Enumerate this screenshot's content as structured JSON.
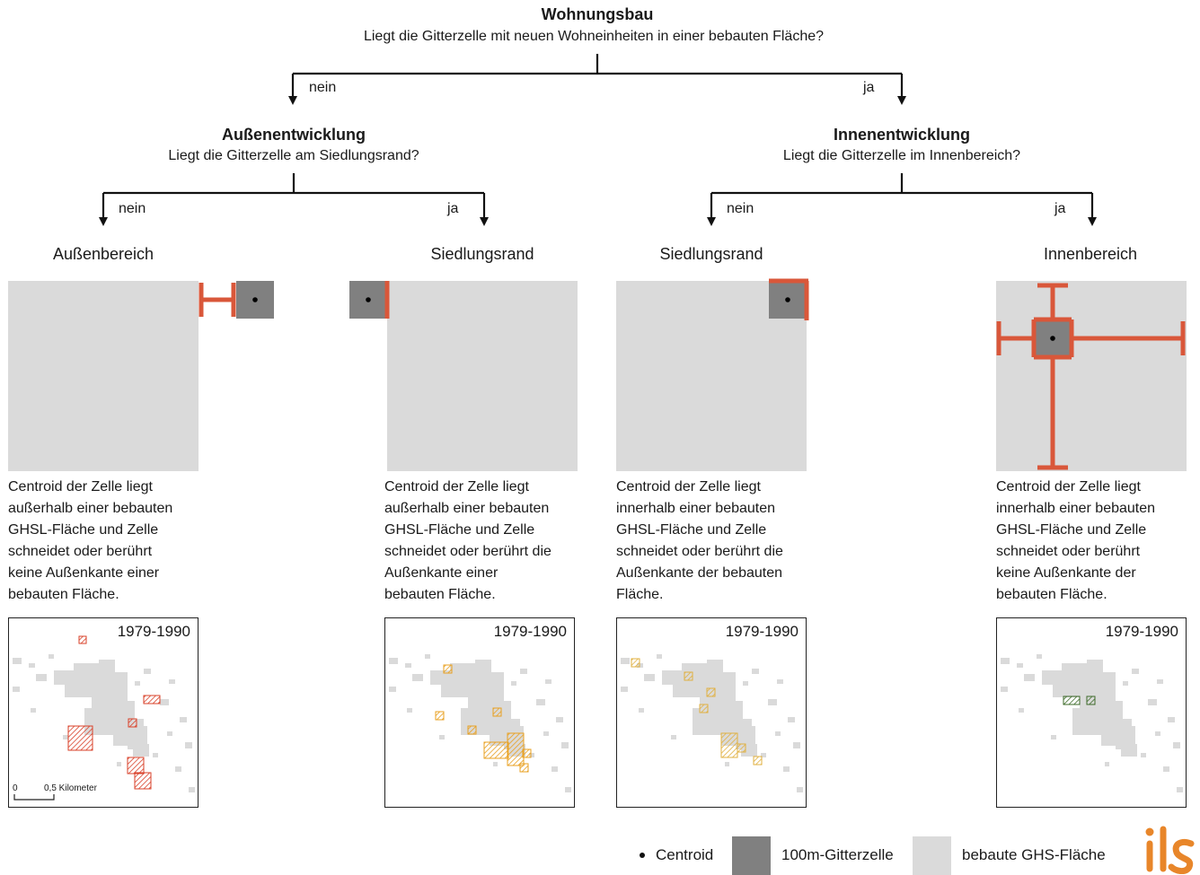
{
  "root": {
    "title": "Wohnungsbau",
    "question": "Liegt die Gitterzelle mit neuen Wohneinheiten in einer bebauten Fläche?",
    "no_label": "nein",
    "yes_label": "ja"
  },
  "left_node": {
    "title": "Außenentwicklung",
    "question": "Liegt die Gitterzelle am Siedlungsrand?",
    "no_label": "nein",
    "yes_label": "ja"
  },
  "right_node": {
    "title": "Innenentwicklung",
    "question": "Liegt die Gitterzelle im Innenbereich?",
    "no_label": "nein",
    "yes_label": "ja"
  },
  "categories": [
    {
      "label": "Außenbereich",
      "desc": [
        "Centroid der Zelle liegt",
        "außerhalb einer bebauten",
        "GHSL-Fläche und Zelle",
        "schneidet oder berührt",
        "keine Außenkante einer",
        "bebauten Fläche."
      ],
      "map_period": "1979-1990",
      "hatch_color": "#d9412a"
    },
    {
      "label": "Siedlungsrand",
      "desc": [
        "Centroid der Zelle liegt",
        "außerhalb einer bebauten",
        "GHSL-Fläche und Zelle",
        "schneidet oder berührt die",
        "Außenkante einer",
        "bebauten Fläche."
      ],
      "map_period": "1979-1990",
      "hatch_color": "#e8a020"
    },
    {
      "label": "Siedlungsrand",
      "desc": [
        "Centroid der Zelle liegt",
        "innerhalb einer bebauten",
        "GHSL-Fläche und Zelle",
        "schneidet oder berührt die",
        "Außenkante der bebauten",
        "Fläche."
      ],
      "map_period": "1979-1990",
      "hatch_color": "#e0b040"
    },
    {
      "label": "Innenbereich",
      "desc": [
        "Centroid der Zelle liegt",
        "innerhalb einer bebauten",
        "GHSL-Fläche und Zelle",
        "schneidet oder berührt",
        "keine Außenkante der",
        "bebauten Fläche."
      ],
      "map_period": "1979-1990",
      "hatch_color": "#3d6b2a"
    }
  ],
  "scale_bar": {
    "zero": "0",
    "label": "0,5 Kilometer"
  },
  "legend": {
    "centroid": "Centroid",
    "grid_cell": "100m-Gitterzelle",
    "built_area": "bebaute GHS-Fläche"
  },
  "logo": {
    "text": "ils"
  },
  "colors": {
    "built_area": "#dadada",
    "grid_cell": "#808080",
    "accent": "#d9573a",
    "logo": "#e8862a"
  }
}
